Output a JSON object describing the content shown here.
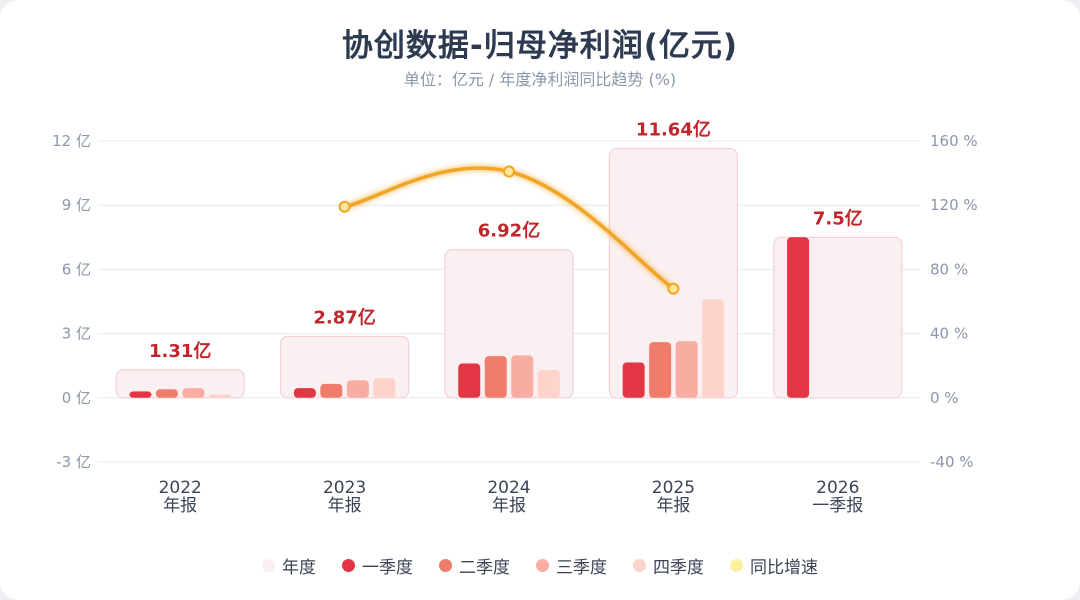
{
  "title": "协创数据-归母净利润(亿元)",
  "subtitle": "单位：亿元 / 年度净利润同比趋势 (%)",
  "colors": {
    "annual_fill": "#fbf0f1",
    "annual_stroke": "#f3d1d5",
    "q1": "#e23645",
    "q2": "#f07c6c",
    "q3": "#f9ada2",
    "q4": "#fdd3cb",
    "yoy_line": "#f0a526",
    "yoy_point": "#fde79a",
    "annual_label": "#c0272d",
    "axis_text": "#8a97ab",
    "grid": "#e6e8ec"
  },
  "legend": [
    {
      "label": "年度",
      "color": "#fbf0f1"
    },
    {
      "label": "一季度",
      "color": "#e23645"
    },
    {
      "label": "二季度",
      "color": "#f07c6c"
    },
    {
      "label": "三季度",
      "color": "#f9ada2"
    },
    {
      "label": "四季度",
      "color": "#fdd3cb"
    },
    {
      "label": "同比增速",
      "color": "#fdf0a0"
    }
  ],
  "chart_data": {
    "type": "bar",
    "categories": [
      {
        "year": "2022",
        "period": "年报"
      },
      {
        "year": "2023",
        "period": "年报"
      },
      {
        "year": "2024",
        "period": "年报"
      },
      {
        "year": "2025",
        "period": "年报"
      },
      {
        "year": "2026",
        "period": "一季报"
      }
    ],
    "annual": [
      1.31,
      2.87,
      6.92,
      11.64,
      7.5
    ],
    "annual_labels": [
      "1.31亿",
      "2.87亿",
      "6.92亿",
      "11.64亿",
      "7.5亿"
    ],
    "series": [
      {
        "name": "一季度",
        "values": [
          0.3,
          0.45,
          1.6,
          1.65,
          7.5
        ]
      },
      {
        "name": "二季度",
        "values": [
          0.4,
          0.65,
          1.95,
          2.6,
          null
        ]
      },
      {
        "name": "三季度",
        "values": [
          0.45,
          0.82,
          1.98,
          2.65,
          null
        ]
      },
      {
        "name": "四季度",
        "values": [
          0.16,
          0.92,
          1.3,
          4.6,
          null
        ]
      }
    ],
    "yoy": {
      "name": "同比增速",
      "values": [
        null,
        119,
        141,
        68,
        null
      ]
    },
    "y_left": {
      "min": -3,
      "max": 12,
      "ticks": [
        -3,
        0,
        3,
        6,
        9,
        12
      ],
      "tick_labels": [
        "-3 亿",
        "0 亿",
        "3 亿",
        "6 亿",
        "9 亿",
        "12 亿"
      ]
    },
    "y_right": {
      "min": -40,
      "max": 160,
      "ticks": [
        -40,
        0,
        40,
        80,
        120,
        160
      ],
      "tick_labels": [
        "-40 %",
        "0 %",
        "40 %",
        "80 %",
        "120 %",
        "160 %"
      ]
    },
    "grid": true,
    "legend_position": "bottom"
  }
}
